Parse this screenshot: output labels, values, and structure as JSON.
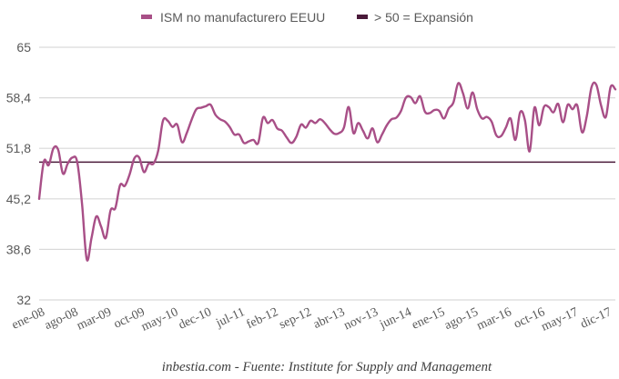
{
  "chart_data": {
    "type": "line",
    "title": "",
    "xlabel": "",
    "ylabel": "",
    "ylim": [
      32,
      65
    ],
    "yticks": [
      32,
      38.6,
      45.2,
      51.8,
      58.4,
      65
    ],
    "ytick_labels": [
      "32",
      "38,6",
      "45,2",
      "51,8",
      "58,4",
      "65"
    ],
    "grid": true,
    "legend_position": "top-center",
    "x_start": "ene-08",
    "x_end": "dic-17",
    "x_frequency": "monthly",
    "xtick_labels": [
      "ene-08",
      "ago-08",
      "mar-09",
      "oct-09",
      "may-10",
      "dec-10",
      "jul-11",
      "feb-12",
      "sep-12",
      "abr-13",
      "nov-13",
      "jun-14",
      "ene-15",
      "ago-15",
      "mar-16",
      "oct-16",
      "may-17",
      "dic-17"
    ],
    "xtick_every_n_months": 7,
    "series": [
      {
        "name": "ISM no manufacturero EEUU",
        "color": "#a84f87",
        "values": [
          45.2,
          50.1,
          49.6,
          51.8,
          51.6,
          48.5,
          49.8,
          50.6,
          50.0,
          44.6,
          37.3,
          40.1,
          42.9,
          41.6,
          40.1,
          43.7,
          44.0,
          47.0,
          46.9,
          48.4,
          50.5,
          50.6,
          48.7,
          49.8,
          49.8,
          51.5,
          55.4,
          55.4,
          54.6,
          54.9,
          52.6,
          53.8,
          55.5,
          56.9,
          57.1,
          57.3,
          57.5,
          56.2,
          55.6,
          55.3,
          54.6,
          53.6,
          53.6,
          52.5,
          52.7,
          52.9,
          52.5,
          55.8,
          55.1,
          55.5,
          54.4,
          54.1,
          53.2,
          52.5,
          53.3,
          54.9,
          54.5,
          55.4,
          55.1,
          55.6,
          55.1,
          54.3,
          53.7,
          53.8,
          54.5,
          57.2,
          53.8,
          55.1,
          54.1,
          53.1,
          54.4,
          52.6,
          53.6,
          54.8,
          55.6,
          55.8,
          56.7,
          58.4,
          58.5,
          57.7,
          58.6,
          56.6,
          56.4,
          56.8,
          56.7,
          55.7,
          57.0,
          57.8,
          60.3,
          59.0,
          57.0,
          59.1,
          56.9,
          55.7,
          55.9,
          55.3,
          53.5,
          53.4,
          54.5,
          55.7,
          52.9,
          56.5,
          55.5,
          51.4,
          57.1,
          54.8,
          57.2,
          57.2,
          56.5,
          57.6,
          55.2,
          57.5,
          56.9,
          57.4,
          53.9,
          56.0,
          59.8,
          60.1,
          57.4,
          55.9,
          59.8,
          59.5
        ]
      },
      {
        "name": "> 50 = Expansión",
        "color": "#4a1a3a",
        "values_constant": 50
      }
    ]
  },
  "footer": {
    "source_text": "inbestia.com - Fuente: Institute for Supply and Management"
  }
}
